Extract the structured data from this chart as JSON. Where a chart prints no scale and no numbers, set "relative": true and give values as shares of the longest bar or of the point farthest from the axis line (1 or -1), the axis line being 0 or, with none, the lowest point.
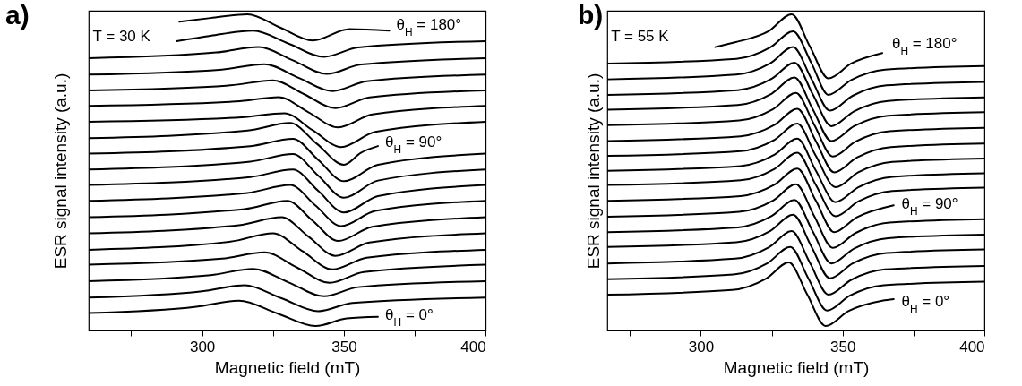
{
  "chart_data": [
    {
      "type": "line",
      "title": "a)",
      "xlabel": "Magnetic field (mT)",
      "ylabel": "ESR signal intensity (a.u.)",
      "relative": true,
      "xlim": [
        260,
        400
      ],
      "xticks": [
        {
          "value": 275,
          "label": null
        },
        300,
        {
          "value": 325,
          "label": null
        },
        350,
        {
          "value": 375,
          "label": null
        },
        400
      ],
      "annotations": [
        "T = 30 K",
        "θ$_{H}$ = 180°",
        "θ$_{H}$ = 90°",
        "θ$_{H}$ = 0°"
      ],
      "series": [
        {
          "color": "#000000",
          "x": [
            260,
            298,
            313,
            326.5,
            340,
            351,
            362
          ],
          "values": [
            0.055,
            0.075,
            0.094,
            0.054,
            0.014,
            0.038,
            0.043
          ]
        },
        {
          "color": "#000000",
          "x": [
            260,
            300,
            315,
            328,
            341,
            353,
            400
          ],
          "values": [
            0.104,
            0.124,
            0.143,
            0.102,
            0.061,
            0.087,
            0.104
          ]
        },
        {
          "color": "#000000",
          "x": [
            260,
            303,
            318,
            330.5,
            343,
            355,
            400
          ],
          "values": [
            0.156,
            0.175,
            0.195,
            0.152,
            0.108,
            0.137,
            0.156
          ]
        },
        {
          "color": "#000000",
          "x": [
            260,
            307,
            322,
            333.5,
            345,
            357,
            400
          ],
          "values": [
            0.208,
            0.227,
            0.247,
            0.199,
            0.151,
            0.185,
            0.208
          ]
        },
        {
          "color": "#000000",
          "x": [
            260,
            310,
            325,
            335.5,
            346,
            358,
            400
          ],
          "values": [
            0.255,
            0.281,
            0.307,
            0.25,
            0.193,
            0.23,
            0.255
          ]
        },
        {
          "color": "#000000",
          "x": [
            260,
            313,
            328,
            337.5,
            347,
            359,
            400
          ],
          "values": [
            0.307,
            0.333,
            0.358,
            0.297,
            0.236,
            0.278,
            0.307
          ]
        },
        {
          "color": "#000000",
          "x": [
            260,
            315,
            330,
            339,
            348,
            360,
            400
          ],
          "values": [
            0.358,
            0.384,
            0.41,
            0.347,
            0.283,
            0.328,
            0.358
          ]
        },
        {
          "color": "#000000",
          "x": [
            260,
            316,
            331,
            340,
            349,
            361,
            400
          ],
          "values": [
            0.41,
            0.435,
            0.46,
            0.395,
            0.33,
            0.378,
            0.41
          ]
        },
        {
          "color": "#000000",
          "x": [
            260,
            317,
            332,
            341,
            350,
            362,
            400
          ],
          "values": [
            0.46,
            0.485,
            0.509,
            0.441,
            0.373,
            0.425,
            0.46
          ]
        },
        {
          "color": "#000000",
          "x": [
            260,
            317,
            332,
            341,
            350,
            362,
            400
          ],
          "values": [
            0.509,
            0.534,
            0.558,
            0.489,
            0.42,
            0.474,
            0.509
          ]
        },
        {
          "color": "#000000",
          "x": [
            260,
            317,
            332,
            341,
            350,
            362,
            400
          ],
          "values": [
            0.559,
            0.583,
            0.606,
            0.539,
            0.472,
            0.524,
            0.559
          ]
        },
        {
          "color": "#000000",
          "x": [
            260,
            316,
            331,
            340.5,
            350,
            356,
            362
          ],
          "values": [
            0.608,
            0.632,
            0.656,
            0.59,
            0.524,
            0.562,
            0.583
          ]
        },
        {
          "color": "#000000",
          "x": [
            260,
            314,
            329,
            339,
            349,
            361,
            400
          ],
          "values": [
            0.66,
            0.674,
            0.687,
            0.633,
            0.58,
            0.628,
            0.66
          ]
        },
        {
          "color": "#000000",
          "x": [
            260,
            312,
            327,
            337.5,
            348,
            360,
            400
          ],
          "values": [
            0.71,
            0.724,
            0.738,
            0.69,
            0.642,
            0.683,
            0.71
          ]
        },
        {
          "color": "#000000",
          "x": [
            260,
            310,
            325,
            336,
            347,
            359,
            400
          ],
          "values": [
            0.759,
            0.775,
            0.791,
            0.747,
            0.703,
            0.737,
            0.759
          ]
        },
        {
          "color": "#000000",
          "x": [
            260,
            307,
            322,
            334,
            346,
            358,
            400
          ],
          "values": [
            0.809,
            0.825,
            0.842,
            0.799,
            0.757,
            0.788,
            0.809
          ]
        },
        {
          "color": "#000000",
          "x": [
            260,
            305,
            320,
            332,
            344,
            356,
            400
          ],
          "values": [
            0.861,
            0.879,
            0.896,
            0.854,
            0.811,
            0.841,
            0.861
          ]
        },
        {
          "color": "#000000",
          "x": [
            291,
            303,
            318,
            330.5,
            343,
            355,
            400
          ],
          "values": [
            0.915,
            0.932,
            0.948,
            0.907,
            0.865,
            0.895,
            0.915
          ]
        },
        {
          "color": "#000000",
          "x": [
            292,
            303,
            316,
            327.5,
            339,
            352,
            366
          ],
          "values": [
            0.976,
            0.988,
            1.0,
            0.958,
            0.917,
            0.953,
            0.948
          ]
        }
      ]
    },
    {
      "type": "line",
      "title": "b)",
      "xlabel": "Magnetic field (mT)",
      "ylabel": "ESR signal intensity (a.u.)",
      "relative": true,
      "xlim": [
        267,
        400
      ],
      "xticks": [
        {
          "value": 275,
          "label": null
        },
        300,
        {
          "value": 325,
          "label": null
        },
        350,
        {
          "value": 375,
          "label": null
        },
        400
      ],
      "annotations": [
        "T = 55 K",
        "θ$_{H}$ = 180°",
        "θ$_{H}$ = 90°",
        "θ$_{H}$ = 0°"
      ],
      "series": [
        {
          "color": "#000000",
          "x": [
            267,
            311,
            323,
            331,
            337.5,
            344,
            352,
            364,
            368
          ],
          "values": [
            0.113,
            0.128,
            0.164,
            0.215,
            0.114,
            0.014,
            0.061,
            0.094,
            0.099
          ]
        },
        {
          "color": "#000000",
          "x": [
            267,
            311.5,
            323.5,
            331.5,
            338,
            344.5,
            352.5,
            364.5,
            400
          ],
          "values": [
            0.162,
            0.177,
            0.213,
            0.264,
            0.163,
            0.063,
            0.11,
            0.143,
            0.154
          ]
        },
        {
          "color": "#000000",
          "x": [
            267,
            312,
            324,
            332,
            338.5,
            345,
            353,
            365,
            400
          ],
          "values": [
            0.212,
            0.227,
            0.263,
            0.314,
            0.213,
            0.113,
            0.16,
            0.193,
            0.204
          ]
        },
        {
          "color": "#000000",
          "x": [
            267,
            312.5,
            324.5,
            332.5,
            339,
            345.5,
            353.5,
            365.5,
            400
          ],
          "values": [
            0.264,
            0.279,
            0.315,
            0.366,
            0.265,
            0.165,
            0.212,
            0.245,
            0.256
          ]
        },
        {
          "color": "#000000",
          "x": [
            267,
            313,
            325,
            333,
            339.5,
            346,
            354,
            366,
            400
          ],
          "values": [
            0.311,
            0.326,
            0.362,
            0.413,
            0.312,
            0.212,
            0.259,
            0.292,
            0.303
          ]
        },
        {
          "color": "#000000",
          "x": [
            267,
            313.5,
            325.5,
            333.5,
            340,
            346.5,
            354.5,
            366.5,
            400
          ],
          "values": [
            0.36,
            0.375,
            0.411,
            0.462,
            0.361,
            0.261,
            0.308,
            0.341,
            0.352
          ]
        },
        {
          "color": "#000000",
          "x": [
            267,
            314,
            326,
            334,
            340.5,
            347,
            355,
            368
          ],
          "values": [
            0.41,
            0.425,
            0.461,
            0.512,
            0.411,
            0.311,
            0.358,
            0.396
          ]
        },
        {
          "color": "#000000",
          "x": [
            267,
            314,
            326,
            334,
            340.5,
            347.5,
            355.5,
            367.5,
            400
          ],
          "values": [
            0.46,
            0.475,
            0.511,
            0.562,
            0.461,
            0.361,
            0.408,
            0.441,
            0.452
          ]
        },
        {
          "color": "#000000",
          "x": [
            267,
            314,
            326,
            334,
            340.5,
            347.5,
            355.5,
            367.5,
            400
          ],
          "values": [
            0.505,
            0.52,
            0.556,
            0.607,
            0.506,
            0.406,
            0.453,
            0.486,
            0.497
          ]
        },
        {
          "color": "#000000",
          "x": [
            267,
            314,
            326,
            334,
            340.5,
            347.5,
            355.5,
            367.5,
            400
          ],
          "values": [
            0.552,
            0.567,
            0.603,
            0.654,
            0.553,
            0.453,
            0.5,
            0.533,
            0.544
          ]
        },
        {
          "color": "#000000",
          "x": [
            267,
            314,
            326,
            334,
            340.5,
            347,
            355,
            367,
            400
          ],
          "values": [
            0.599,
            0.614,
            0.65,
            0.701,
            0.6,
            0.5,
            0.547,
            0.58,
            0.591
          ]
        },
        {
          "color": "#000000",
          "x": [
            267,
            313.5,
            325.5,
            333.5,
            340,
            346.5,
            354.5,
            366.5,
            400
          ],
          "values": [
            0.649,
            0.664,
            0.7,
            0.751,
            0.65,
            0.55,
            0.597,
            0.63,
            0.641
          ]
        },
        {
          "color": "#000000",
          "x": [
            267,
            313,
            325,
            333,
            339.5,
            346,
            354,
            366,
            400
          ],
          "values": [
            0.698,
            0.713,
            0.749,
            0.8,
            0.699,
            0.599,
            0.646,
            0.679,
            0.69
          ]
        },
        {
          "color": "#000000",
          "x": [
            267,
            313,
            325,
            333,
            339.5,
            346,
            354,
            366,
            400
          ],
          "values": [
            0.745,
            0.76,
            0.796,
            0.847,
            0.746,
            0.646,
            0.693,
            0.726,
            0.737
          ]
        },
        {
          "color": "#000000",
          "x": [
            267,
            312.5,
            324.5,
            332.5,
            339,
            345.5,
            353.5,
            365.5,
            400
          ],
          "values": [
            0.794,
            0.809,
            0.845,
            0.896,
            0.795,
            0.695,
            0.742,
            0.775,
            0.786
          ]
        },
        {
          "color": "#000000",
          "x": [
            267,
            312.5,
            324.5,
            332.5,
            339,
            345,
            353,
            365,
            400
          ],
          "values": [
            0.844,
            0.859,
            0.895,
            0.946,
            0.845,
            0.745,
            0.792,
            0.825,
            0.836
          ]
        },
        {
          "color": "#000000",
          "x": [
            305,
            312,
            324,
            332,
            338.5,
            345,
            353,
            364
          ],
          "values": [
            0.896,
            0.911,
            0.947,
            1.0,
            0.897,
            0.797,
            0.844,
            0.877
          ]
        }
      ]
    }
  ]
}
